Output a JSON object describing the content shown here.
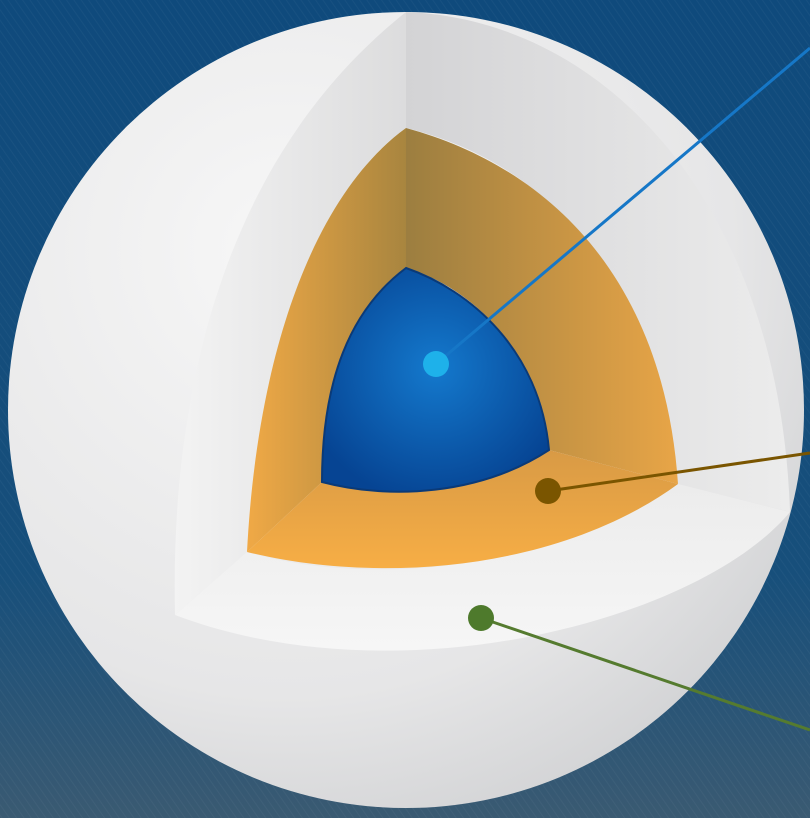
{
  "diagram": {
    "layers": [
      {
        "name": "outer-shell",
        "color": "#e9e9ea"
      },
      {
        "name": "middle-layer",
        "color": "#f2ad45"
      },
      {
        "name": "inner-core",
        "color": "#0a55a3"
      }
    ],
    "pointers": [
      {
        "name": "core-pointer",
        "color": "#1677c7",
        "marker_color": "#1eb1ea"
      },
      {
        "name": "middle-layer-pointer",
        "color": "#7a5500",
        "marker_color": "#7a5500"
      },
      {
        "name": "outer-shell-pointer",
        "color": "#557b2f",
        "marker_color": "#4e7a2c"
      }
    ],
    "background": {
      "color": "#0d3f6b"
    }
  }
}
